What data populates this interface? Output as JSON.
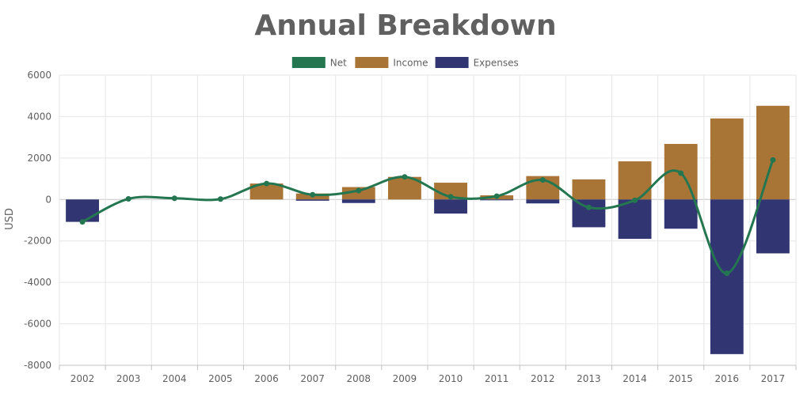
{
  "chart_data": {
    "type": "bar",
    "title": "Annual Breakdown",
    "xlabel": "",
    "ylabel": "USD",
    "ylim": [
      -8000,
      6000
    ],
    "yticks": [
      6000,
      4000,
      2000,
      0,
      -2000,
      -4000,
      -6000,
      -8000
    ],
    "grid": true,
    "legend_position": "top-center",
    "categories": [
      "2002",
      "2003",
      "2004",
      "2005",
      "2006",
      "2007",
      "2008",
      "2009",
      "2010",
      "2011",
      "2012",
      "2013",
      "2014",
      "2015",
      "2016",
      "2017"
    ],
    "series": [
      {
        "name": "Net",
        "type": "line",
        "color": "#247650",
        "values": [
          -1080,
          30,
          60,
          20,
          770,
          230,
          430,
          1090,
          130,
          160,
          940,
          -380,
          -40,
          1270,
          -3560,
          1910
        ]
      },
      {
        "name": "Income",
        "type": "bar",
        "color": "#A97536",
        "values": [
          0,
          0,
          0,
          0,
          770,
          290,
          600,
          1090,
          810,
          200,
          1130,
          970,
          1840,
          2680,
          3910,
          4520
        ]
      },
      {
        "name": "Expenses",
        "type": "bar",
        "color": "#313673",
        "values": [
          -1080,
          0,
          0,
          0,
          0,
          -60,
          -170,
          0,
          -680,
          -40,
          -190,
          -1340,
          -1900,
          -1410,
          -7460,
          -2600
        ]
      }
    ]
  }
}
